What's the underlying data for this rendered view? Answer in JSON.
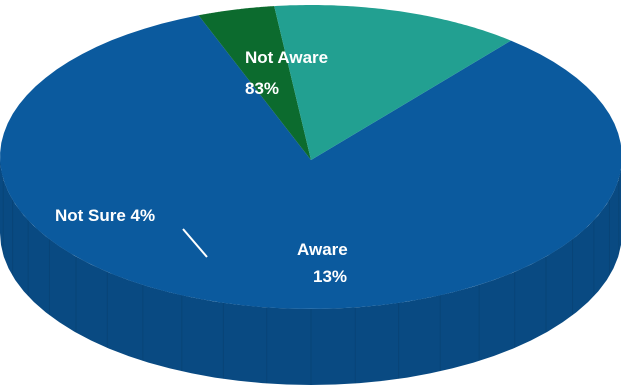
{
  "chart_data": {
    "type": "pie",
    "style": "3d",
    "title": "",
    "slices": [
      {
        "label": "Not Aware",
        "value": 83,
        "value_label": "83%",
        "color": "#0b5a9e",
        "side_color": "#094a82"
      },
      {
        "label": "Not Sure",
        "value": 4,
        "value_label": "4%",
        "color": "#0c6b2e",
        "side_color": "#0a5a26"
      },
      {
        "label": "Aware",
        "value": 13,
        "value_label": "13%",
        "color": "#22a091",
        "side_color": "#1d8a7c"
      }
    ]
  },
  "labels": {
    "not_aware_name": "Not Aware",
    "not_aware_value": "83%",
    "not_sure_text": "Not Sure 4%",
    "aware_name": "Aware",
    "aware_value": "13%"
  }
}
